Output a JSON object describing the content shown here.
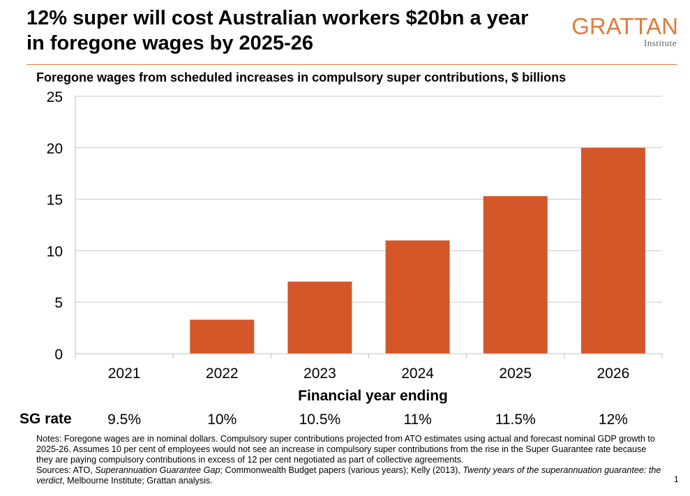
{
  "header": {
    "title": "12% super will cost Australian workers $20bn a year in foregone wages by 2025-26",
    "logo_main": "GRATTAN",
    "logo_sub": "Institute",
    "accent_color": "#e07b3c"
  },
  "chart_data": {
    "type": "bar",
    "title": "Foregone wages from scheduled increases in compulsory super contributions, $ billions",
    "categories": [
      "2021",
      "2022",
      "2023",
      "2024",
      "2025",
      "2026"
    ],
    "values": [
      0,
      3.3,
      7.0,
      11.0,
      15.3,
      20.0
    ],
    "xlabel": "Financial year ending",
    "ylabel": "",
    "ylim": [
      0,
      25
    ],
    "yticks": [
      "0",
      "5",
      "10",
      "15",
      "20",
      "25"
    ],
    "grid": true,
    "bar_color": "#d4572a"
  },
  "sg_rate": {
    "label": "SG rate",
    "values": [
      "9.5%",
      "10%",
      "10.5%",
      "11%",
      "11.5%",
      "12%"
    ]
  },
  "notes": {
    "line1": "Notes: Foregone wages are in nominal dollars. Compulsory super contributions projected from ATO estimates using actual and forecast nominal GDP growth to 2025-26. Assumes 10 per cent of employees would not see an increase in compulsory super contributions from the rise in the Super Guarantee rate because they are paying compulsory contributions in excess of 12 per cent negotiated as part of collective agreements.",
    "sources_prefix": "Sources: ATO, ",
    "source_italic_1": "Superannuation Guarantee Gap",
    "sources_mid": "; Commonwealth Budget papers (various years); Kelly (2013), ",
    "source_italic_2": "Twenty years of the superannuation guarantee: the verdict",
    "sources_suffix": ", Melbourne Institute; Grattan analysis."
  },
  "page_number": "1"
}
